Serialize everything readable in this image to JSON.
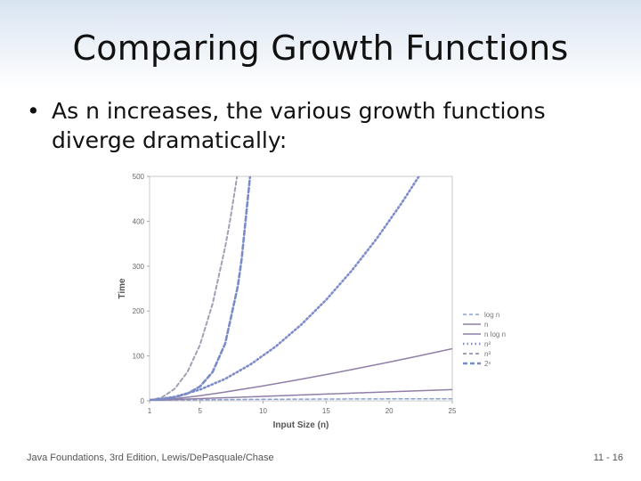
{
  "slide": {
    "title": "Comparing Growth Functions",
    "bullet": "As n increases, the various growth functions diverge dramatically:",
    "footer_left": "Java Foundations, 3rd Edition, Lewis/DePasquale/Chase",
    "footer_right": "11 - 16"
  },
  "chart_data": {
    "type": "line",
    "title": "",
    "xlabel": "Input Size (n)",
    "ylabel": "Time",
    "xlim": [
      1,
      25
    ],
    "ylim": [
      0,
      500
    ],
    "xticks": [
      1,
      5,
      10,
      15,
      20,
      25
    ],
    "yticks": [
      0,
      100,
      200,
      300,
      400,
      500
    ],
    "grid": false,
    "legend_position": "right",
    "series": [
      {
        "name": "log n",
        "style": "dashed-light",
        "color": "#8aa0d0",
        "x": [
          1,
          5,
          10,
          15,
          20,
          25
        ],
        "y": [
          0,
          2.32,
          3.32,
          3.91,
          4.32,
          4.64
        ]
      },
      {
        "name": "n",
        "style": "solid",
        "color": "#8f7fa6",
        "x": [
          1,
          5,
          10,
          15,
          20,
          25
        ],
        "y": [
          1,
          5,
          10,
          15,
          20,
          25
        ]
      },
      {
        "name": "n log n",
        "style": "solid",
        "color": "#8f7fa6",
        "x": [
          1,
          3,
          5,
          7,
          10,
          13,
          15,
          17,
          20,
          22,
          25
        ],
        "y": [
          0,
          4.75,
          11.6,
          19.65,
          33.2,
          48.1,
          58.6,
          69.5,
          86.4,
          98.1,
          116.1
        ]
      },
      {
        "name": "n²",
        "style": "dotted",
        "color": "#7e8ccc",
        "x": [
          1,
          3,
          5,
          7,
          9,
          11,
          13,
          15,
          17,
          19,
          21,
          22.4
        ],
        "y": [
          1,
          9,
          25,
          49,
          81,
          121,
          169,
          225,
          289,
          361,
          441,
          502
        ]
      },
      {
        "name": "n³",
        "style": "dashed",
        "color": "#a0a0b8",
        "x": [
          1,
          2,
          3,
          4,
          5,
          6,
          7,
          7.4,
          7.94
        ],
        "y": [
          1,
          8,
          27,
          64,
          125,
          216,
          343,
          405,
          500
        ]
      },
      {
        "name": "2ⁿ",
        "style": "dashed-bold",
        "color": "#7a8cc8",
        "x": [
          1,
          2,
          3,
          4,
          5,
          6,
          7,
          8,
          8.3,
          8.97
        ],
        "y": [
          2,
          4,
          8,
          16,
          32,
          64,
          128,
          256,
          315,
          500
        ]
      }
    ]
  }
}
